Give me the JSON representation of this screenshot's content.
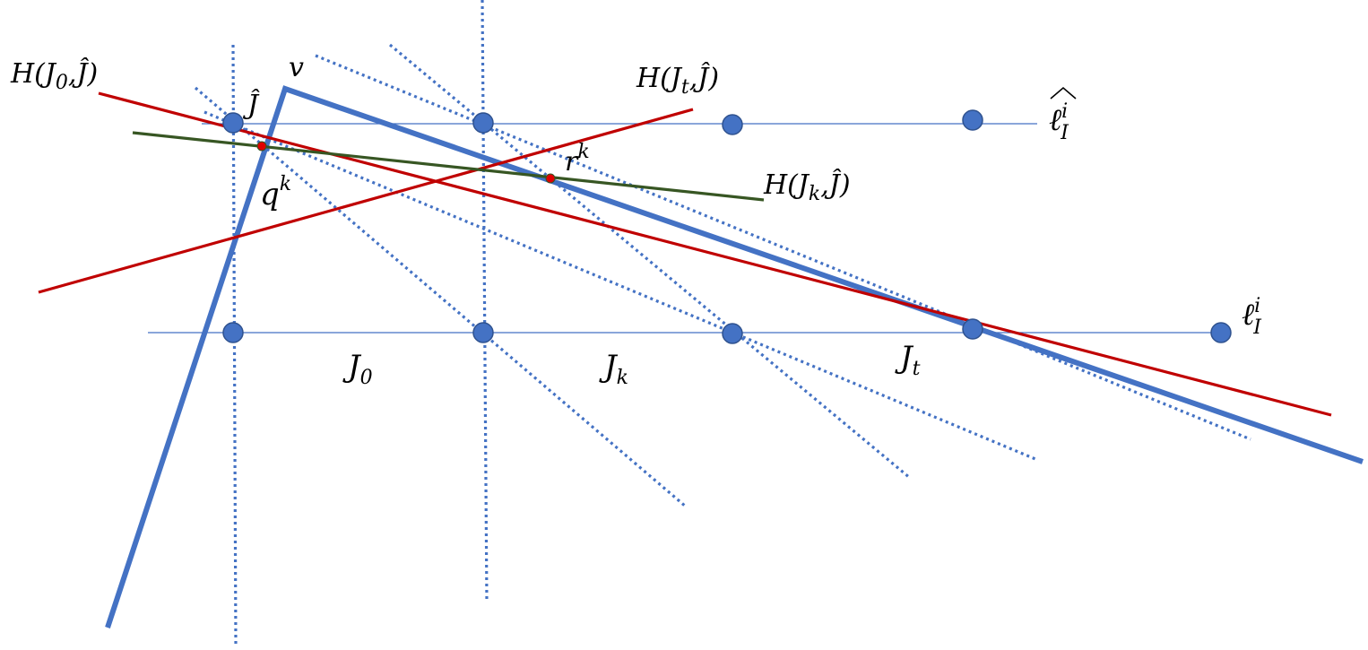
{
  "colors": {
    "blue": "#4472C4",
    "red": "#C00000",
    "green": "#375623",
    "point_red": "#E00000",
    "text": "#000000"
  },
  "labels": {
    "H_J0": {
      "base": "H(J",
      "sub": "0",
      "tail": ",Ĵ)"
    },
    "H_Jt": {
      "base": "H(J",
      "sub": "t",
      "tail": ",Ĵ)"
    },
    "H_Jk": {
      "base": "H(J",
      "sub": "k",
      "tail": ",Ĵ)"
    },
    "v": "v",
    "J_hat": "Ĵ",
    "q_k": {
      "base": "q",
      "sup": "k"
    },
    "r_k": {
      "base": "r",
      "sup": "k"
    },
    "ell_hat": {
      "base": "ℓ",
      "sup": "i",
      "sub": "I"
    },
    "ell": {
      "base": "ℓ",
      "sup": "i",
      "sub": "I"
    },
    "J0": {
      "base": "J",
      "sub": "0"
    },
    "Jk": {
      "base": "J",
      "sub": "k"
    },
    "Jt": {
      "base": "J",
      "sub": "t"
    }
  }
}
